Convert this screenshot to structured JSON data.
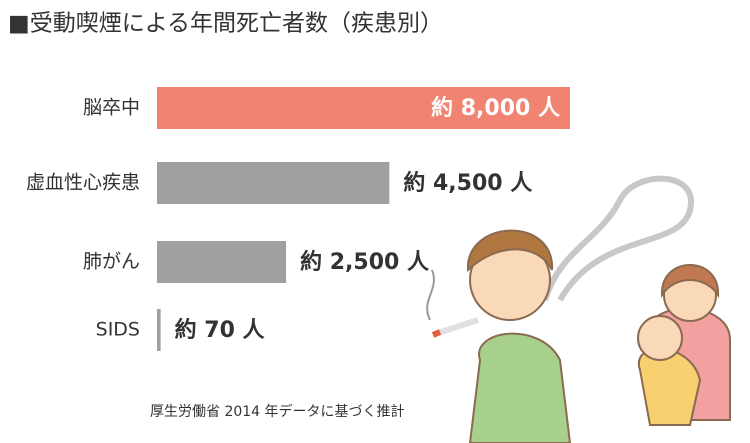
{
  "chart_data": {
    "type": "bar",
    "orientation": "horizontal",
    "title": "■受動喫煙による年間死亡者数（疾患別）",
    "categories": [
      "脳卒中",
      "虚血性心疾患",
      "肺がん",
      "SIDS"
    ],
    "values": [
      8000,
      4500,
      2500,
      70
    ],
    "value_labels": [
      "約 8,000 人",
      "約 4,500 人",
      "約 2,500 人",
      "約 70 人"
    ],
    "colors": [
      "#f08371",
      "#a0a0a0",
      "#a0a0a0",
      "#a0a0a0"
    ],
    "source": "厚生労働省 2014 年データに基づく推計"
  }
}
